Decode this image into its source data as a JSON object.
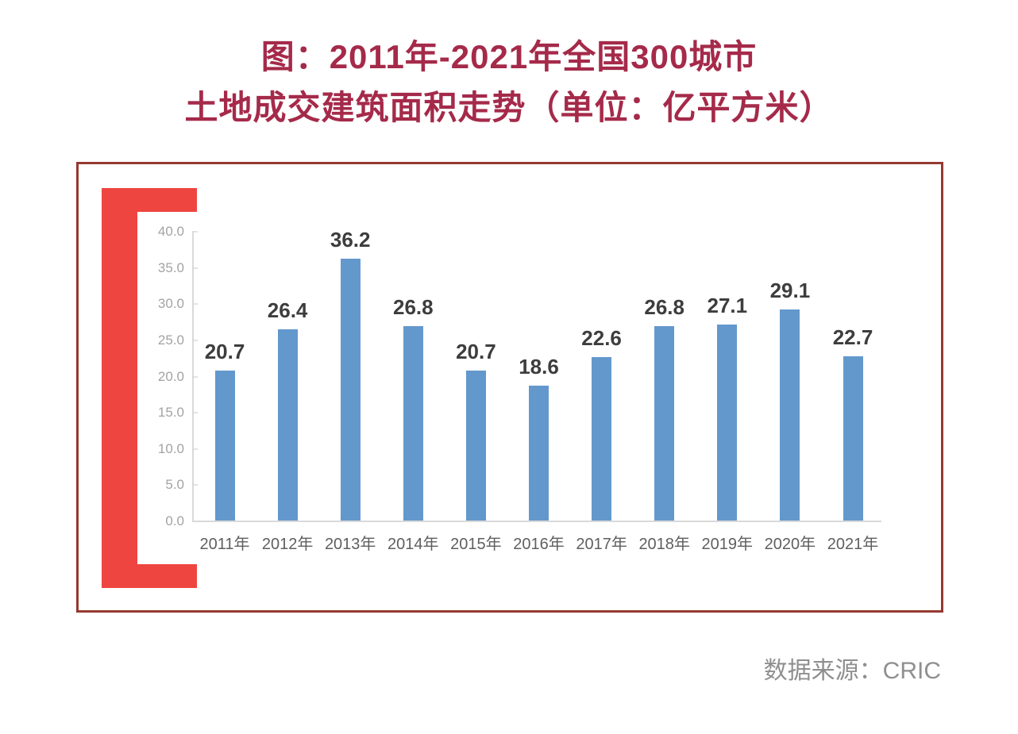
{
  "page": {
    "background": "#ffffff"
  },
  "title": {
    "line1": "图：2011年-2021年全国300城市",
    "line2": "土地成交建筑面积走势（单位：亿平方米）"
  },
  "source": {
    "label": "数据来源：CRIC"
  },
  "colors": {
    "title": "#a52a4a",
    "bracket_red": "#ee4540",
    "frame_border": "#953931",
    "bar_blue": "#6398cd",
    "value_label": "#3d3d3d",
    "x_label": "#5f5f5f",
    "y_label": "#a3a3a3",
    "axis_line": "#d9d9d9",
    "source_text": "#8f8f8f"
  },
  "chart_data": {
    "type": "bar",
    "title": "图：2011年-2021年全国300城市土地成交建筑面积走势",
    "unit": "亿平方米",
    "categories": [
      "2011年",
      "2012年",
      "2013年",
      "2014年",
      "2015年",
      "2016年",
      "2017年",
      "2018年",
      "2019年",
      "2020年",
      "2021年"
    ],
    "values": [
      20.7,
      26.4,
      36.2,
      26.8,
      20.7,
      18.6,
      22.6,
      26.8,
      27.1,
      29.1,
      22.7
    ],
    "ylim": [
      0,
      40
    ],
    "ytick_step": 5,
    "ytick_labels": [
      "0.0",
      "5.0",
      "10.0",
      "15.0",
      "20.0",
      "25.0",
      "30.0",
      "35.0",
      "40.0"
    ],
    "grid": false,
    "legend": "none",
    "data_labels": true
  }
}
